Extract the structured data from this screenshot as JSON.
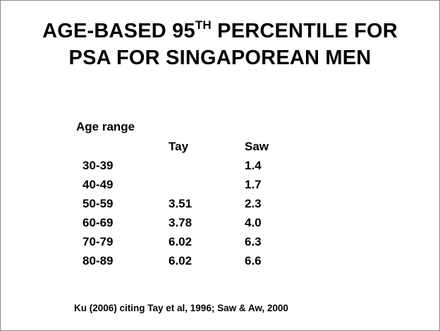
{
  "slide": {
    "title_line1_pre": "AGE-BASED 95",
    "title_line1_sup": "TH",
    "title_line1_post": " PERCENTILE FOR",
    "title_line2": "PSA FOR SINGAPOREAN MEN"
  },
  "table": {
    "age_header": "Age range",
    "col_tay": "Tay",
    "col_saw": "Saw",
    "rows": [
      {
        "age": "30-39",
        "tay": "",
        "saw": "1.4"
      },
      {
        "age": "40-49",
        "tay": "",
        "saw": "1.7"
      },
      {
        "age": "50-59",
        "tay": "3.51",
        "saw": "2.3"
      },
      {
        "age": "60-69",
        "tay": "3.78",
        "saw": "4.0"
      },
      {
        "age": "70-79",
        "tay": "6.02",
        "saw": "6.3"
      },
      {
        "age": "80-89",
        "tay": "6.02",
        "saw": "6.6"
      }
    ]
  },
  "citation": "Ku (2006) citing Tay et al, 1996; Saw & Aw, 2000"
}
